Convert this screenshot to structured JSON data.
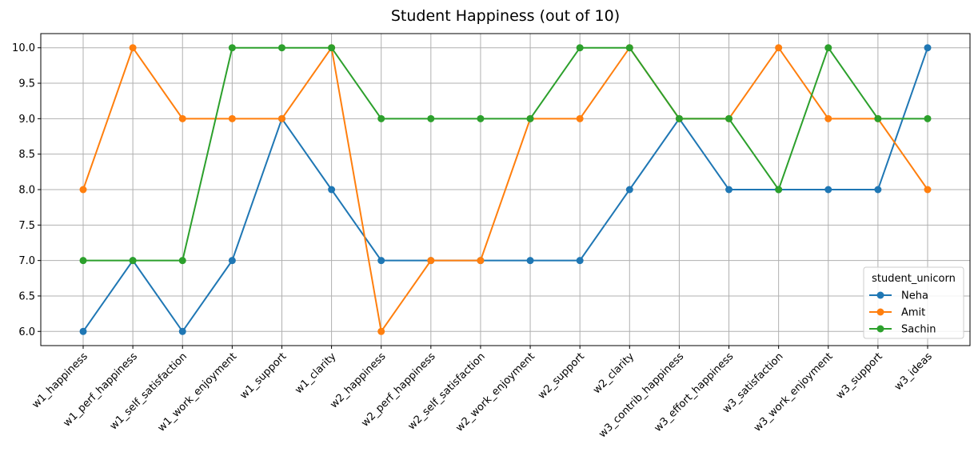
{
  "chart_data": {
    "type": "line",
    "title": "Student Happiness (out of 10)",
    "xlabel": "",
    "ylabel": "",
    "categories": [
      "w1_happiness",
      "w1_perf_happiness",
      "w1_self_satisfaction",
      "w1_work_enjoyment",
      "w1_support",
      "w1_clarity",
      "w2_happiness",
      "w2_perf_happiness",
      "w2_self_satisfaction",
      "w2_work_enjoyment",
      "w2_support",
      "w2_clarity",
      "w3_contrib_happiness",
      "w3_effort_happiness",
      "w3_satisfaction",
      "w3_work_enjoyment",
      "w3_support",
      "w3_ideas"
    ],
    "series": [
      {
        "name": "Neha",
        "color": "#1f77b4",
        "values": [
          6,
          7,
          6,
          7,
          9,
          8,
          7,
          7,
          7,
          7,
          7,
          8,
          9,
          8,
          8,
          8,
          8,
          10
        ]
      },
      {
        "name": "Amit",
        "color": "#ff7f0e",
        "values": [
          8,
          10,
          9,
          9,
          9,
          10,
          6,
          7,
          7,
          9,
          9,
          10,
          9,
          9,
          10,
          9,
          9,
          8
        ]
      },
      {
        "name": "Sachin",
        "color": "#2ca02c",
        "values": [
          7,
          7,
          7,
          10,
          10,
          10,
          9,
          9,
          9,
          9,
          10,
          10,
          9,
          9,
          8,
          10,
          9,
          9
        ]
      }
    ],
    "yticks": [
      "6.0",
      "6.5",
      "7.0",
      "7.5",
      "8.0",
      "8.5",
      "9.0",
      "9.5",
      "10.0"
    ],
    "ylim": [
      5.8,
      10.2
    ],
    "grid": true,
    "legend": {
      "title": "student_unicorn",
      "placement": "lower-right"
    }
  }
}
